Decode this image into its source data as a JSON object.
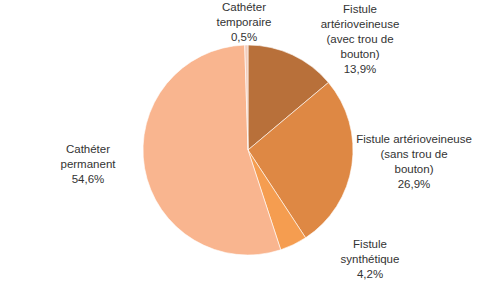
{
  "chart_data": {
    "type": "pie",
    "categories": [
      "Fistule artérioveineuse (avec trou de bouton)",
      "Fistule artérioveineuse (sans trou de bouton)",
      "Fistule synthétique",
      "Cathéter permanent",
      "Cathéter temporaire"
    ],
    "values": [
      13.9,
      26.9,
      4.2,
      54.6,
      0.5
    ],
    "value_labels": [
      "13,9%",
      "26,9%",
      "4,2%",
      "54,6%",
      "0,5%"
    ],
    "colors": [
      "#b8703a",
      "#de8844",
      "#f59d50",
      "#f9b58f",
      "#f3cdbd"
    ],
    "data_labels": true
  }
}
